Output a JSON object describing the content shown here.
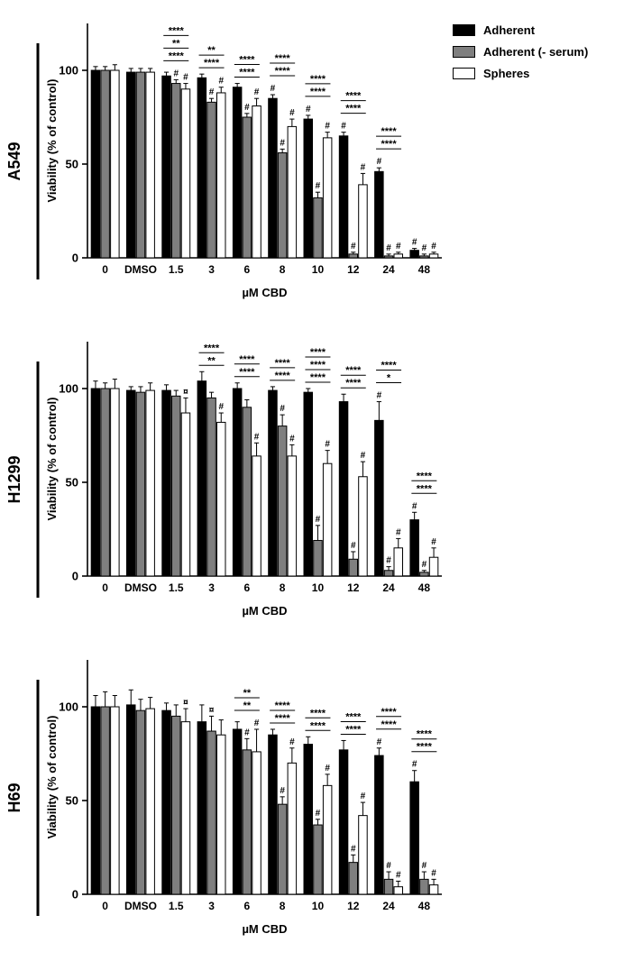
{
  "figure": {
    "xlabel": "µM CBD",
    "ylabel": "Viability (% of control)",
    "yticks": [
      0,
      50,
      100
    ],
    "ylim": [
      0,
      125
    ],
    "legend": [
      {
        "label": "Adherent",
        "color": "#000000"
      },
      {
        "label": "Adherent (- serum)",
        "color": "#7f7f7f"
      },
      {
        "label": "Spheres",
        "color": "#ffffff"
      }
    ]
  },
  "chart_data": [
    {
      "type": "bar",
      "title": "A549",
      "xlabel": "µM CBD",
      "ylabel": "Viability (% of control)",
      "ylim": [
        0,
        125
      ],
      "categories": [
        "0",
        "DMSO",
        "1.5",
        "3",
        "6",
        "8",
        "10",
        "12",
        "24",
        "48"
      ],
      "series": [
        {
          "name": "Adherent",
          "color": "#000000",
          "values": [
            100,
            99,
            97,
            96,
            91,
            85,
            74,
            65,
            46,
            4
          ],
          "errors": [
            2,
            2,
            2,
            2,
            2,
            2,
            2,
            2,
            2,
            1
          ]
        },
        {
          "name": "Adherent (- serum)",
          "color": "#7f7f7f",
          "values": [
            100,
            99,
            93,
            83,
            75,
            56,
            32,
            2,
            1,
            1
          ],
          "errors": [
            2,
            2,
            2,
            2,
            2,
            2,
            3,
            1,
            1,
            1
          ]
        },
        {
          "name": "Spheres",
          "color": "#ffffff",
          "values": [
            100,
            99,
            90,
            88,
            81,
            70,
            64,
            39,
            2,
            2
          ],
          "errors": [
            3,
            2,
            3,
            3,
            4,
            4,
            3,
            6,
            1,
            1
          ]
        }
      ],
      "annotations": {
        "stars": [
          [],
          [],
          [
            "****",
            "**",
            "****"
          ],
          [
            "****",
            "**"
          ],
          [
            "****",
            "****"
          ],
          [
            "****",
            "****"
          ],
          [
            "****",
            "****"
          ],
          [
            "****",
            "****"
          ],
          [
            "****",
            "****"
          ],
          []
        ],
        "markers": [
          [
            "",
            "",
            ""
          ],
          [
            "",
            "",
            ""
          ],
          [
            "",
            "#",
            "#"
          ],
          [
            "",
            "#",
            "#"
          ],
          [
            "",
            "#",
            "#"
          ],
          [
            "#",
            "#",
            "#"
          ],
          [
            "#",
            "#",
            "#"
          ],
          [
            "#",
            "#",
            "#"
          ],
          [
            "#",
            "#",
            "#"
          ],
          [
            "#",
            "#",
            "#"
          ]
        ]
      }
    },
    {
      "type": "bar",
      "title": "H1299",
      "xlabel": "µM CBD",
      "ylabel": "Viability (% of control)",
      "ylim": [
        0,
        125
      ],
      "categories": [
        "0",
        "DMSO",
        "1.5",
        "3",
        "6",
        "8",
        "10",
        "12",
        "24",
        "48"
      ],
      "series": [
        {
          "name": "Adherent",
          "color": "#000000",
          "values": [
            100,
            99,
            99,
            104,
            100,
            99,
            98,
            93,
            83,
            30
          ],
          "errors": [
            4,
            2,
            3,
            5,
            3,
            2,
            2,
            4,
            10,
            4
          ]
        },
        {
          "name": "Adherent (- serum)",
          "color": "#7f7f7f",
          "values": [
            100,
            98,
            96,
            95,
            90,
            80,
            19,
            9,
            3,
            2
          ],
          "errors": [
            3,
            3,
            3,
            3,
            4,
            6,
            8,
            4,
            2,
            1
          ]
        },
        {
          "name": "Spheres",
          "color": "#ffffff",
          "values": [
            100,
            99,
            87,
            82,
            64,
            64,
            60,
            53,
            15,
            10
          ],
          "errors": [
            5,
            4,
            8,
            5,
            7,
            6,
            7,
            8,
            5,
            5
          ]
        }
      ],
      "annotations": {
        "stars": [
          [],
          [],
          [],
          [
            "**",
            "****"
          ],
          [
            "****",
            "****"
          ],
          [
            "****",
            "****"
          ],
          [
            "****",
            "****",
            "****"
          ],
          [
            "****",
            "****"
          ],
          [
            "*",
            "****"
          ],
          [
            "****",
            "****"
          ]
        ],
        "markers": [
          [
            "",
            "",
            ""
          ],
          [
            "",
            "",
            ""
          ],
          [
            "",
            "",
            "¤"
          ],
          [
            "",
            "",
            "#"
          ],
          [
            "",
            "",
            "#"
          ],
          [
            "",
            "#",
            "#"
          ],
          [
            "",
            "#",
            "#"
          ],
          [
            "",
            "#",
            "#"
          ],
          [
            "#",
            "#",
            "#"
          ],
          [
            "#",
            "#",
            "#"
          ]
        ]
      }
    },
    {
      "type": "bar",
      "title": "H69",
      "xlabel": "µM CBD",
      "ylabel": "Viability (% of control)",
      "ylim": [
        0,
        125
      ],
      "categories": [
        "0",
        "DMSO",
        "1.5",
        "3",
        "6",
        "8",
        "10",
        "12",
        "24",
        "48"
      ],
      "series": [
        {
          "name": "Adherent",
          "color": "#000000",
          "values": [
            100,
            101,
            98,
            92,
            88,
            85,
            80,
            77,
            74,
            60
          ],
          "errors": [
            6,
            8,
            4,
            9,
            4,
            3,
            4,
            5,
            4,
            6
          ]
        },
        {
          "name": "Adherent (- serum)",
          "color": "#7f7f7f",
          "values": [
            100,
            98,
            95,
            87,
            77,
            48,
            37,
            17,
            8,
            8
          ],
          "errors": [
            8,
            6,
            6,
            8,
            6,
            4,
            3,
            4,
            4,
            4
          ]
        },
        {
          "name": "Spheres",
          "color": "#ffffff",
          "values": [
            100,
            99,
            92,
            85,
            76,
            70,
            58,
            42,
            4,
            5
          ],
          "errors": [
            6,
            6,
            7,
            8,
            12,
            8,
            6,
            7,
            3,
            3
          ]
        }
      ],
      "annotations": {
        "stars": [
          [],
          [],
          [],
          [],
          [
            "**",
            "**"
          ],
          [
            "****",
            "****"
          ],
          [
            "****",
            "****"
          ],
          [
            "****",
            "****"
          ],
          [
            "****",
            "****"
          ],
          [
            "****",
            "****"
          ]
        ],
        "markers": [
          [
            "",
            "",
            ""
          ],
          [
            "",
            "",
            ""
          ],
          [
            "",
            "",
            "¤"
          ],
          [
            "",
            "¤",
            ""
          ],
          [
            "",
            "#",
            "#"
          ],
          [
            "",
            "#",
            "#"
          ],
          [
            "",
            "#",
            "#"
          ],
          [
            "",
            "#",
            "#"
          ],
          [
            "#",
            "#",
            "#"
          ],
          [
            "#",
            "#",
            "#"
          ]
        ]
      }
    }
  ]
}
